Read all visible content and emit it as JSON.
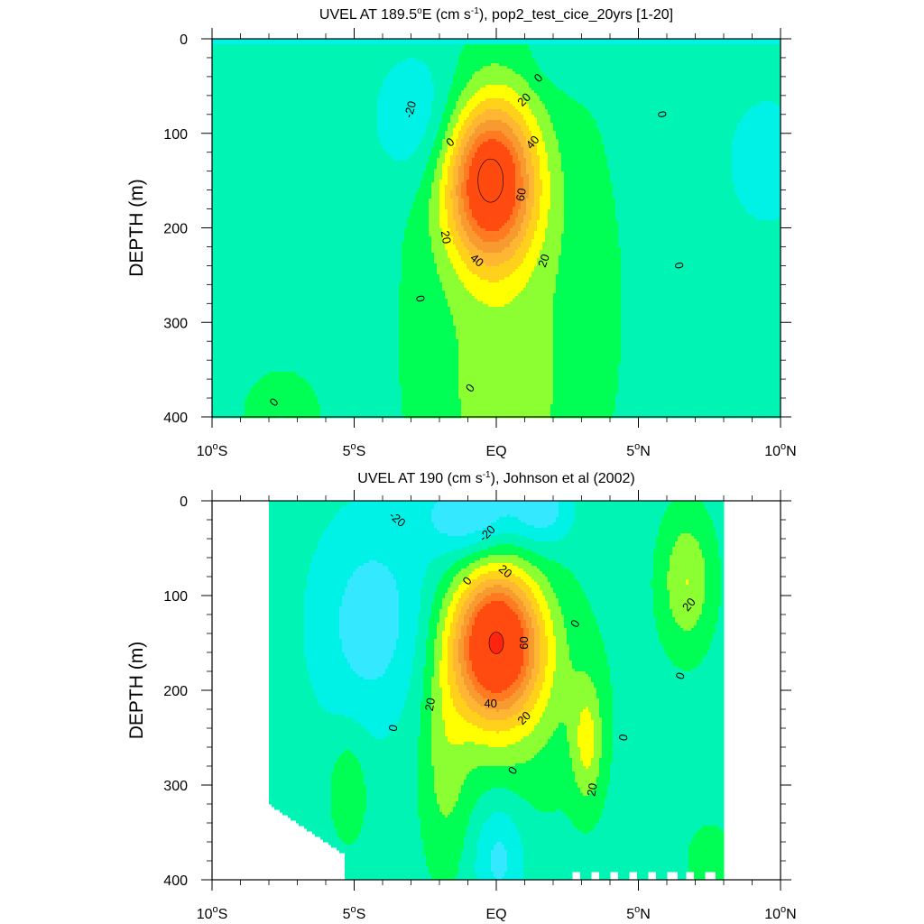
{
  "chart_data": [
    {
      "type": "heatmap",
      "subtype": "filled-contour",
      "title": "UVEL AT 189.5°E (cm s-1), pop2_test_cice_20yrs [1-20]",
      "title_parts": {
        "prefix": "UVEL AT 189.5",
        "deg": "o",
        "mid": "E (cm s",
        "sup": "-1",
        "suffix": "), pop2_test_cice_20yrs [1-20]"
      },
      "ylabel": "DEPTH (m)",
      "xlim": [
        -10,
        10
      ],
      "ylim": [
        400,
        0
      ],
      "x_ticks": [
        {
          "value": -10,
          "label": "10",
          "deg": "o",
          "suffix": "S"
        },
        {
          "value": -5,
          "label": "5",
          "deg": "o",
          "suffix": "S"
        },
        {
          "value": 0,
          "label": "EQ",
          "deg": "",
          "suffix": ""
        },
        {
          "value": 5,
          "label": "5",
          "deg": "o",
          "suffix": "N"
        },
        {
          "value": 10,
          "label": "10",
          "deg": "o",
          "suffix": "N"
        }
      ],
      "y_ticks": [
        0,
        100,
        200,
        300,
        400
      ],
      "data_extent_lat": [
        -10,
        10
      ],
      "core": {
        "lat": -0.2,
        "depth": 150,
        "max_value": 85
      },
      "contour_labels": [
        {
          "text": "0",
          "lat": 1.5,
          "depth": 42,
          "rot": -45
        },
        {
          "text": "-20",
          "lat": -3.0,
          "depth": 75,
          "rot": -75
        },
        {
          "text": "0",
          "lat": 5.8,
          "depth": 80,
          "rot": 80
        },
        {
          "text": "20",
          "lat": 1.0,
          "depth": 65,
          "rot": -45
        },
        {
          "text": "0",
          "lat": -1.6,
          "depth": 110,
          "rot": -40
        },
        {
          "text": "40",
          "lat": 1.3,
          "depth": 110,
          "rot": -50
        },
        {
          "text": "60",
          "lat": 0.9,
          "depth": 165,
          "rot": -80
        },
        {
          "text": "20",
          "lat": -1.8,
          "depth": 210,
          "rot": 80
        },
        {
          "text": "40",
          "lat": -0.7,
          "depth": 235,
          "rot": 40
        },
        {
          "text": "20",
          "lat": 1.7,
          "depth": 235,
          "rot": -70
        },
        {
          "text": "0",
          "lat": 6.4,
          "depth": 240,
          "rot": 80
        },
        {
          "text": "0",
          "lat": -2.7,
          "depth": 275,
          "rot": 80
        },
        {
          "text": "0",
          "lat": -0.9,
          "depth": 370,
          "rot": -50
        },
        {
          "text": "0",
          "lat": -7.8,
          "depth": 385,
          "rot": -50
        }
      ]
    },
    {
      "type": "heatmap",
      "subtype": "filled-contour",
      "title": "UVEL AT 190 (cm s-1), Johnson et al (2002)",
      "title_parts": {
        "prefix": "UVEL AT 190",
        "deg": "",
        "mid": " (cm s",
        "sup": "-1",
        "suffix": "), Johnson et al (2002)"
      },
      "ylabel": "DEPTH (m)",
      "xlim": [
        -10,
        10
      ],
      "ylim": [
        400,
        0
      ],
      "x_ticks": [
        {
          "value": -10,
          "label": "10",
          "deg": "o",
          "suffix": "S"
        },
        {
          "value": -5,
          "label": "5",
          "deg": "o",
          "suffix": "S"
        },
        {
          "value": 0,
          "label": "EQ",
          "deg": "",
          "suffix": ""
        },
        {
          "value": 5,
          "label": "5",
          "deg": "o",
          "suffix": "N"
        },
        {
          "value": 10,
          "label": "10",
          "deg": "o",
          "suffix": "N"
        }
      ],
      "y_ticks": [
        0,
        100,
        200,
        300,
        400
      ],
      "data_extent_lat": [
        -8,
        8
      ],
      "core": {
        "lat": 0.0,
        "depth": 150,
        "max_value": 85
      },
      "contour_labels": [
        {
          "text": "-20",
          "lat": -3.5,
          "depth": 20,
          "rot": 40
        },
        {
          "text": "-20",
          "lat": -0.3,
          "depth": 35,
          "rot": -45
        },
        {
          "text": "20",
          "lat": 0.3,
          "depth": 75,
          "rot": 40
        },
        {
          "text": "0",
          "lat": -1.0,
          "depth": 85,
          "rot": -50
        },
        {
          "text": "20",
          "lat": 6.8,
          "depth": 110,
          "rot": -50
        },
        {
          "text": "0",
          "lat": 2.8,
          "depth": 130,
          "rot": -60
        },
        {
          "text": "60",
          "lat": 1.0,
          "depth": 150,
          "rot": -90
        },
        {
          "text": "0",
          "lat": 6.5,
          "depth": 185,
          "rot": -70
        },
        {
          "text": "20",
          "lat": -2.3,
          "depth": 215,
          "rot": -80
        },
        {
          "text": "40",
          "lat": -0.2,
          "depth": 215,
          "rot": 0
        },
        {
          "text": "20",
          "lat": 1.0,
          "depth": 230,
          "rot": -45
        },
        {
          "text": "0",
          "lat": -3.6,
          "depth": 240,
          "rot": -80
        },
        {
          "text": "0",
          "lat": 4.5,
          "depth": 250,
          "rot": -80
        },
        {
          "text": "0",
          "lat": 0.6,
          "depth": 285,
          "rot": -60
        },
        {
          "text": "20",
          "lat": 3.4,
          "depth": 305,
          "rot": -80
        }
      ]
    }
  ],
  "contour_levels": [
    -40,
    -30,
    -20,
    -10,
    0,
    10,
    20,
    30,
    40,
    50,
    60,
    70,
    80
  ],
  "colors": {
    "below_-30": "#1e9bff",
    "-30_to_-20": "#00c8ff",
    "-20_to_-10": "#33e8ff",
    "-10_to_0": "#00f2e6",
    "0_to_10": "#00f5b4",
    "10_to_20": "#00ff55",
    "20_to_30": "#8cff32",
    "30_to_40": "#ffff00",
    "40_to_50": "#ffd11a",
    "50_to_60": "#ffb733",
    "60_to_70": "#f79a30",
    "70_to_80": "#ff7a20",
    "above_80": "#ff4a10"
  }
}
